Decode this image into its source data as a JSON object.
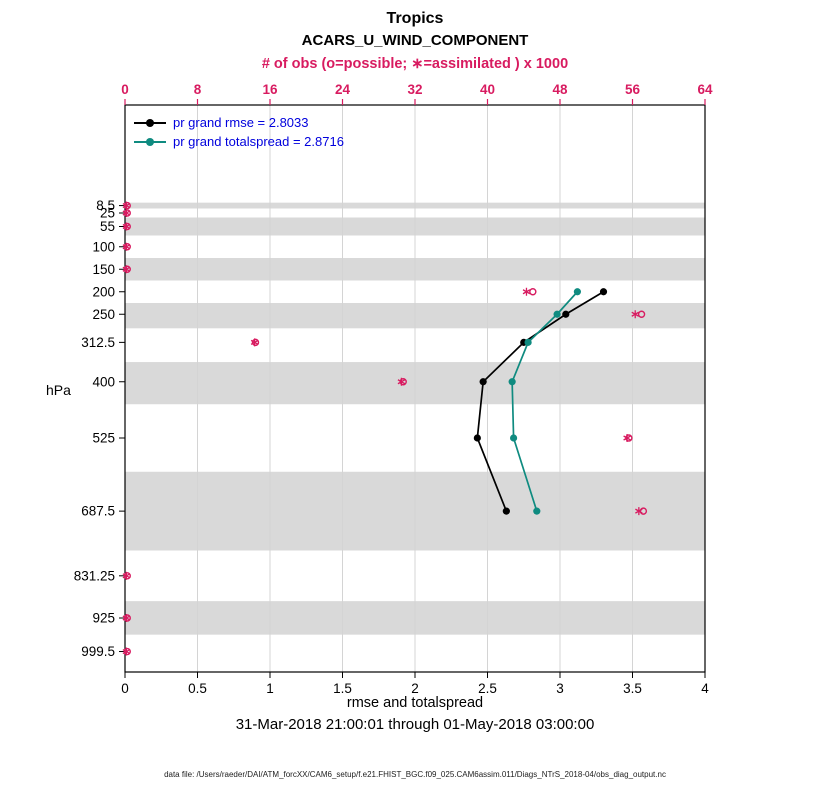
{
  "figure": {
    "title1": "Tropics",
    "title2": "ACARS_U_WIND_COMPONENT",
    "top_axis_label": "# of obs (o=possible; ∗=assimilated ) x 1000",
    "bottom_axis_label": "rmse and totalspread",
    "y_axis_label": "hPa",
    "date_range": "31-Mar-2018 21:00:01 through 01-May-2018 03:00:00",
    "footer": "data file: /Users/raeder/DAI/ATM_forcXX/CAM6_setup/f.e21.FHIST_BGC.f09_025.CAM6assim.011/Diags_NTrS_2018-04/obs_diag_output.nc"
  },
  "legend": {
    "text_color": "#0000dd",
    "entries": [
      {
        "label": "pr grand rmse = 2.8033",
        "color": "#000000"
      },
      {
        "label": "pr grand totalspread = 2.8716",
        "color": "#0f8b80"
      }
    ]
  },
  "chart_data": {
    "type": "line",
    "title": "Tropics — ACARS_U_WIND_COMPONENT",
    "x_bottom": {
      "label": "rmse and totalspread",
      "ticks": [
        0,
        0.5,
        1,
        1.5,
        2,
        2.5,
        3,
        3.5,
        4
      ],
      "range": [
        0,
        4
      ]
    },
    "x_top": {
      "label": "# of obs (o=possible; ∗=assimilated ) x 1000",
      "ticks": [
        0,
        8,
        16,
        24,
        32,
        40,
        48,
        56,
        64
      ],
      "range": [
        0,
        64
      ],
      "color": "#d81b60"
    },
    "y_axis": {
      "label": "hPa",
      "ticks": [
        8.5,
        25,
        55,
        100,
        150,
        200,
        250,
        312.5,
        400,
        525,
        687.5,
        831.25,
        925,
        999.5
      ],
      "direction": "pressure-increasing-downward"
    },
    "series": [
      {
        "name": "pr grand rmse",
        "color": "#000000",
        "marker": "filled-circle",
        "levels": [
          200,
          250,
          312.5,
          400,
          525,
          687.5
        ],
        "values": [
          3.3,
          3.04,
          2.75,
          2.47,
          2.43,
          2.63
        ],
        "summary_value": 2.8033
      },
      {
        "name": "pr grand totalspread",
        "color": "#0f8b80",
        "marker": "filled-circle",
        "levels": [
          200,
          250,
          312.5,
          400,
          525,
          687.5
        ],
        "values": [
          3.12,
          2.98,
          2.78,
          2.67,
          2.68,
          2.84
        ],
        "summary_value": 2.8716
      }
    ],
    "obs_counts": {
      "color": "#d81b60",
      "units": "x 1000",
      "levels": [
        8.5,
        25,
        55,
        100,
        150,
        200,
        250,
        312.5,
        400,
        525,
        687.5,
        831.25,
        925,
        999.5
      ],
      "possible": [
        0.25,
        0.25,
        0.25,
        0.25,
        0.25,
        45.0,
        57.0,
        14.4,
        30.7,
        55.6,
        57.2,
        0.25,
        0.25,
        0.25
      ],
      "assimilated": [
        0.15,
        0.15,
        0.15,
        0.15,
        0.15,
        44.3,
        56.3,
        14.3,
        30.5,
        55.4,
        56.7,
        0.15,
        0.15,
        0.15
      ]
    },
    "shaded_bands": [
      [
        2,
        15
      ],
      [
        35,
        75
      ],
      [
        125,
        175
      ],
      [
        225,
        281.25
      ],
      [
        356.25,
        450
      ],
      [
        600,
        775
      ],
      [
        887.5,
        962
      ]
    ],
    "band_color": "#d9d9d9",
    "grid_color": "#d4d4d4"
  }
}
